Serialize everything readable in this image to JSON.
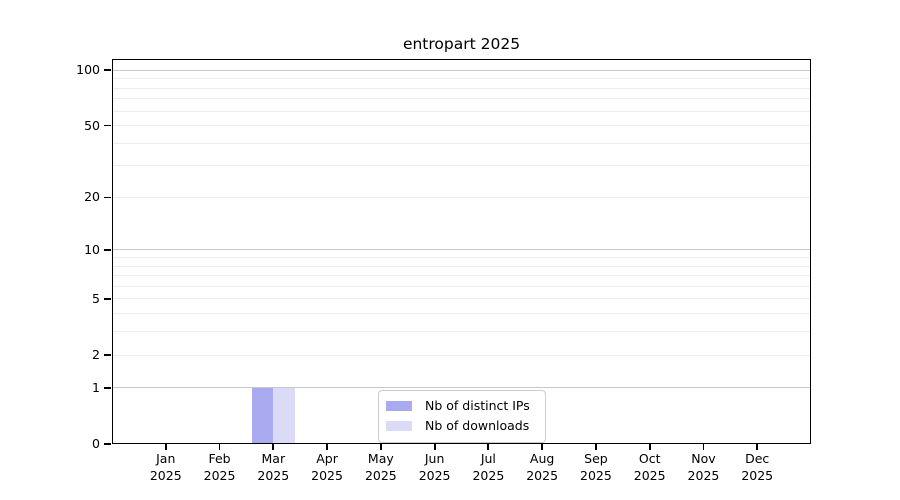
{
  "chart_data": {
    "type": "bar",
    "title": "entropart 2025",
    "categories": [
      "Jan",
      "Feb",
      "Mar",
      "Apr",
      "May",
      "Jun",
      "Jul",
      "Aug",
      "Sep",
      "Oct",
      "Nov",
      "Dec"
    ],
    "year_label": "2025",
    "series": [
      {
        "name": "Nb of distinct IPs",
        "color": "#aaaaf0",
        "values": [
          0,
          0,
          1,
          0,
          0,
          0,
          0,
          0,
          0,
          0,
          0,
          0
        ]
      },
      {
        "name": "Nb of downloads",
        "color": "#dbdbf8",
        "values": [
          0,
          0,
          1,
          0,
          0,
          0,
          0,
          0,
          0,
          0,
          0,
          0
        ]
      }
    ],
    "xlabel": "",
    "ylabel": "",
    "yscale": "log1p",
    "ylim": [
      0,
      115
    ],
    "ytick_values": [
      0,
      1,
      2,
      5,
      10,
      20,
      50,
      100
    ],
    "major_grid_values": [
      1,
      10,
      100
    ],
    "minor_grid_values": [
      2,
      3,
      4,
      5,
      6,
      7,
      8,
      9,
      20,
      30,
      40,
      50,
      60,
      70,
      80,
      90
    ],
    "grid": "horizontal",
    "legend_position": "lower-center",
    "colors": {
      "major_grid": "#c8c8c8",
      "minor_grid": "#ececec",
      "axis": "#000000",
      "legend_border": "#cccccc",
      "background": "#ffffff"
    }
  }
}
